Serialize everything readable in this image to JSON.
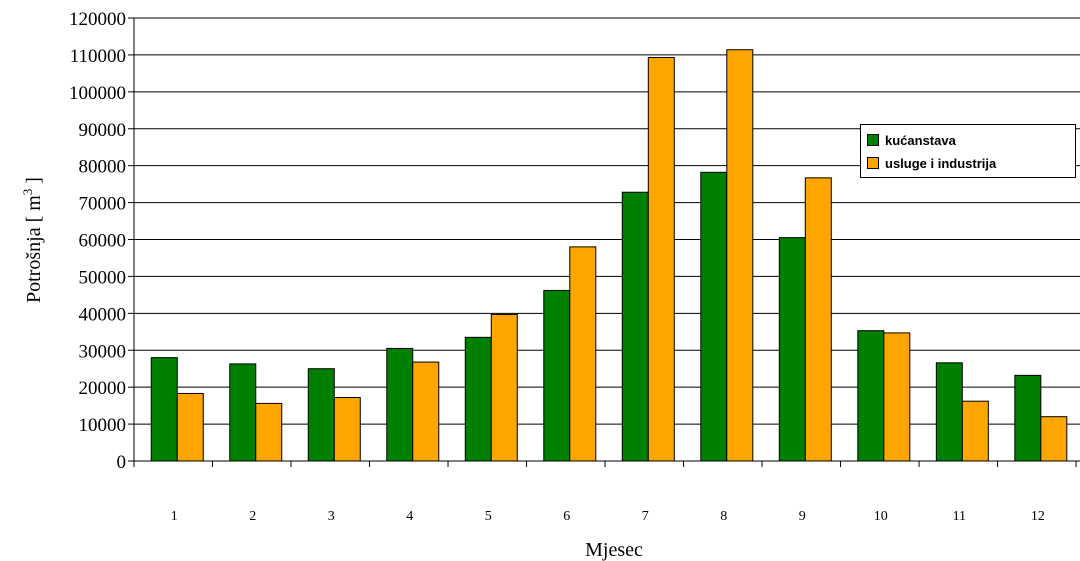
{
  "chart_data": {
    "type": "bar",
    "categories": [
      "1",
      "2",
      "3",
      "4",
      "5",
      "6",
      "7",
      "8",
      "9",
      "10",
      "11",
      "12"
    ],
    "series": [
      {
        "name": "kućanstava",
        "color": "#008000",
        "values": [
          28000,
          26300,
          25000,
          30500,
          33500,
          46200,
          72800,
          78200,
          60500,
          35300,
          26600,
          23200
        ]
      },
      {
        "name": "usluge i industrija",
        "color": "#FFA500",
        "values": [
          18300,
          15600,
          17200,
          26800,
          39700,
          58000,
          109300,
          111400,
          76700,
          34700,
          16200,
          12000
        ]
      }
    ],
    "xlabel": "Mjesec",
    "ylabel": {
      "text": "Potrošnja [ m",
      "superscript": "3",
      "closing": " ]"
    },
    "ylim": [
      0,
      120000
    ],
    "yticks": [
      "0",
      "10000",
      "20000",
      "30000",
      "40000",
      "50000",
      "60000",
      "70000",
      "80000",
      "90000",
      "100000",
      "110000",
      "120000"
    ],
    "grid": true,
    "legend_position": "right"
  }
}
